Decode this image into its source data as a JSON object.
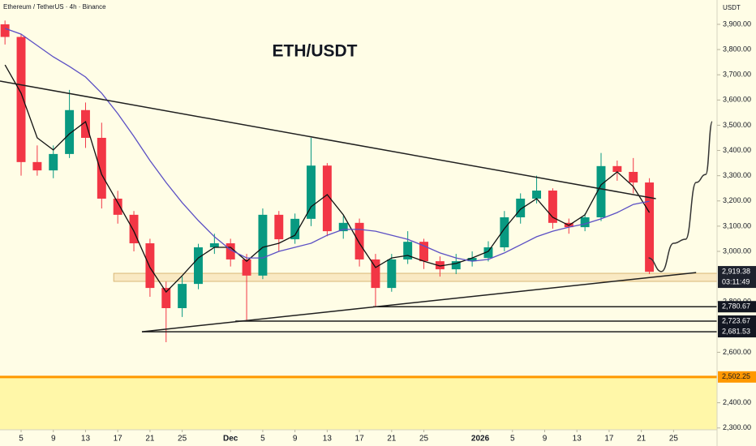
{
  "chart_data": {
    "type": "candlestick",
    "header": "Ethereum / TetherUS · 4h · Binance",
    "title": "ETH/USDT",
    "currency": "USDT",
    "up_color": "#089981",
    "down_color": "#f23645",
    "x": [
      2,
      4,
      6,
      8,
      10,
      12,
      14,
      16,
      18,
      20,
      22,
      24,
      26,
      28,
      30,
      32,
      34,
      36,
      38,
      40,
      42,
      44,
      46,
      48,
      50,
      52,
      54,
      56,
      58,
      60,
      62,
      64,
      66,
      68,
      70,
      72,
      74,
      76,
      78,
      80,
      82
    ],
    "open": [
      3900,
      3850,
      3354,
      3321,
      3386,
      3560,
      3450,
      3209,
      3145,
      3032,
      2855,
      2775,
      2871,
      3016,
      3032,
      2968,
      2904,
      3145,
      3048,
      3129,
      3340,
      3080,
      3113,
      2968,
      2855,
      2968,
      3038,
      2961,
      2929,
      2961,
      2974,
      3016,
      3135,
      3209,
      3241,
      3113,
      3096,
      3135,
      3338,
      3315,
      3273
    ],
    "high": [
      3915,
      3860,
      3420,
      3420,
      3640,
      3590,
      3510,
      3240,
      3160,
      3050,
      2880,
      2900,
      3030,
      3070,
      3050,
      2990,
      3170,
      3160,
      3150,
      3450,
      3350,
      3140,
      3130,
      2990,
      2990,
      3080,
      3050,
      2980,
      2990,
      3000,
      3040,
      3160,
      3230,
      3300,
      3250,
      3130,
      3150,
      3390,
      3360,
      3370,
      3290
    ],
    "low": [
      3820,
      3300,
      3300,
      3290,
      3370,
      3410,
      3170,
      3110,
      3000,
      2820,
      2640,
      2740,
      2850,
      2990,
      2940,
      2723,
      2890,
      3000,
      3030,
      3100,
      3060,
      3050,
      2940,
      2780,
      2840,
      2950,
      2930,
      2900,
      2910,
      2940,
      2960,
      3000,
      3110,
      3190,
      3090,
      3070,
      3080,
      3120,
      3280,
      3230,
      2910
    ],
    "close": [
      3850,
      3354,
      3321,
      3386,
      3560,
      3450,
      3209,
      3145,
      3032,
      2855,
      2775,
      2871,
      3016,
      3032,
      2968,
      2904,
      3145,
      3048,
      3129,
      3340,
      3080,
      3113,
      2968,
      2855,
      2968,
      3038,
      2961,
      2929,
      2961,
      2974,
      3016,
      3135,
      3209,
      3241,
      3113,
      3096,
      3135,
      3338,
      3315,
      3273,
      2919
    ],
    "overlays": [
      {
        "color": "#111111",
        "values": [
          3739,
          3627,
          3450,
          3402,
          3466,
          3514,
          3305,
          3193,
          3080,
          2936,
          2839,
          2904,
          2974,
          3016,
          3016,
          2961,
          3016,
          3032,
          3064,
          3177,
          3225,
          3145,
          3032,
          2936,
          2974,
          2984,
          2961,
          2942,
          2952,
          2974,
          3000,
          3090,
          3167,
          3209,
          3135,
          3103,
          3145,
          3264,
          3315,
          3257,
          3154
        ]
      },
      {
        "color": "#5b4fc4",
        "values": [
          3884,
          3861,
          3816,
          3771,
          3733,
          3691,
          3627,
          3546,
          3456,
          3360,
          3273,
          3193,
          3122,
          3058,
          3006,
          2974,
          2974,
          3000,
          3016,
          3032,
          3064,
          3087,
          3087,
          3080,
          3064,
          3048,
          3022,
          2994,
          2974,
          2961,
          2968,
          2994,
          3026,
          3058,
          3080,
          3096,
          3109,
          3129,
          3154,
          3186,
          3199
        ]
      }
    ],
    "trendlines": [
      {
        "x": [
          1.38,
          82.8
        ],
        "y": [
          3675,
          3209
        ]
      },
      {
        "x": [
          19.0,
          87.8
        ],
        "y": [
          2681.5,
          2916
        ]
      }
    ],
    "projection": {
      "x": [
        81.9,
        83.5,
        85,
        86.5,
        87.8,
        89,
        89.8
      ],
      "y": [
        2974,
        2920,
        3032,
        3048,
        3273,
        3305,
        3514
      ]
    },
    "zone": {
      "x_start": 15.5,
      "low": 2881,
      "high": 2913
    },
    "last_price": {
      "value": 2919.38,
      "label": "2,919.38"
    },
    "countdown": "03:11:49",
    "levels": [
      {
        "value": 2780.67,
        "label": "2,780.67",
        "x_start": 47.7
      },
      {
        "value": 2723.67,
        "label": "2,723.67",
        "x_start": 30.6
      },
      {
        "value": 2681.53,
        "label": "2,681.53",
        "x_start": 19.0
      }
    ],
    "support": {
      "value": 2502.25,
      "label": "2,502.25",
      "color": "#ff9800"
    },
    "xlim": [
      1.38,
      90.4
    ],
    "ylim": [
      2292.8,
      3996.4
    ],
    "xticks": [
      {
        "value": 4,
        "label": "5"
      },
      {
        "value": 8,
        "label": "9"
      },
      {
        "value": 12,
        "label": "13"
      },
      {
        "value": 16,
        "label": "17"
      },
      {
        "value": 20,
        "label": "21"
      },
      {
        "value": 24,
        "label": "25"
      },
      {
        "value": 30,
        "label": "Dec"
      },
      {
        "value": 34,
        "label": "5"
      },
      {
        "value": 38,
        "label": "9"
      },
      {
        "value": 42,
        "label": "13"
      },
      {
        "value": 46,
        "label": "17"
      },
      {
        "value": 50,
        "label": "21"
      },
      {
        "value": 54,
        "label": "25"
      },
      {
        "value": 61,
        "label": "2026"
      },
      {
        "value": 65,
        "label": "5"
      },
      {
        "value": 69,
        "label": "9"
      },
      {
        "value": 73,
        "label": "13"
      },
      {
        "value": 77,
        "label": "17"
      },
      {
        "value": 81,
        "label": "21"
      },
      {
        "value": 85,
        "label": "25"
      }
    ],
    "yticks": [
      {
        "value": 3900,
        "label": "3,900.00"
      },
      {
        "value": 3800,
        "label": "3,800.00"
      },
      {
        "value": 3700,
        "label": "3,700.00"
      },
      {
        "value": 3600,
        "label": "3,600.00"
      },
      {
        "value": 3500,
        "label": "3,500.00"
      },
      {
        "value": 3400,
        "label": "3,400.00"
      },
      {
        "value": 3300,
        "label": "3,300.00"
      },
      {
        "value": 3200,
        "label": "3,200.00"
      },
      {
        "value": 3100,
        "label": "3,100.00"
      },
      {
        "value": 3000,
        "label": "3,000.00"
      },
      {
        "value": 2800,
        "label": "2,800.00"
      },
      {
        "value": 2600,
        "label": "2,600.00"
      },
      {
        "value": 2400,
        "label": "2,400.00"
      },
      {
        "value": 2300,
        "label": "2,300.00"
      }
    ]
  }
}
